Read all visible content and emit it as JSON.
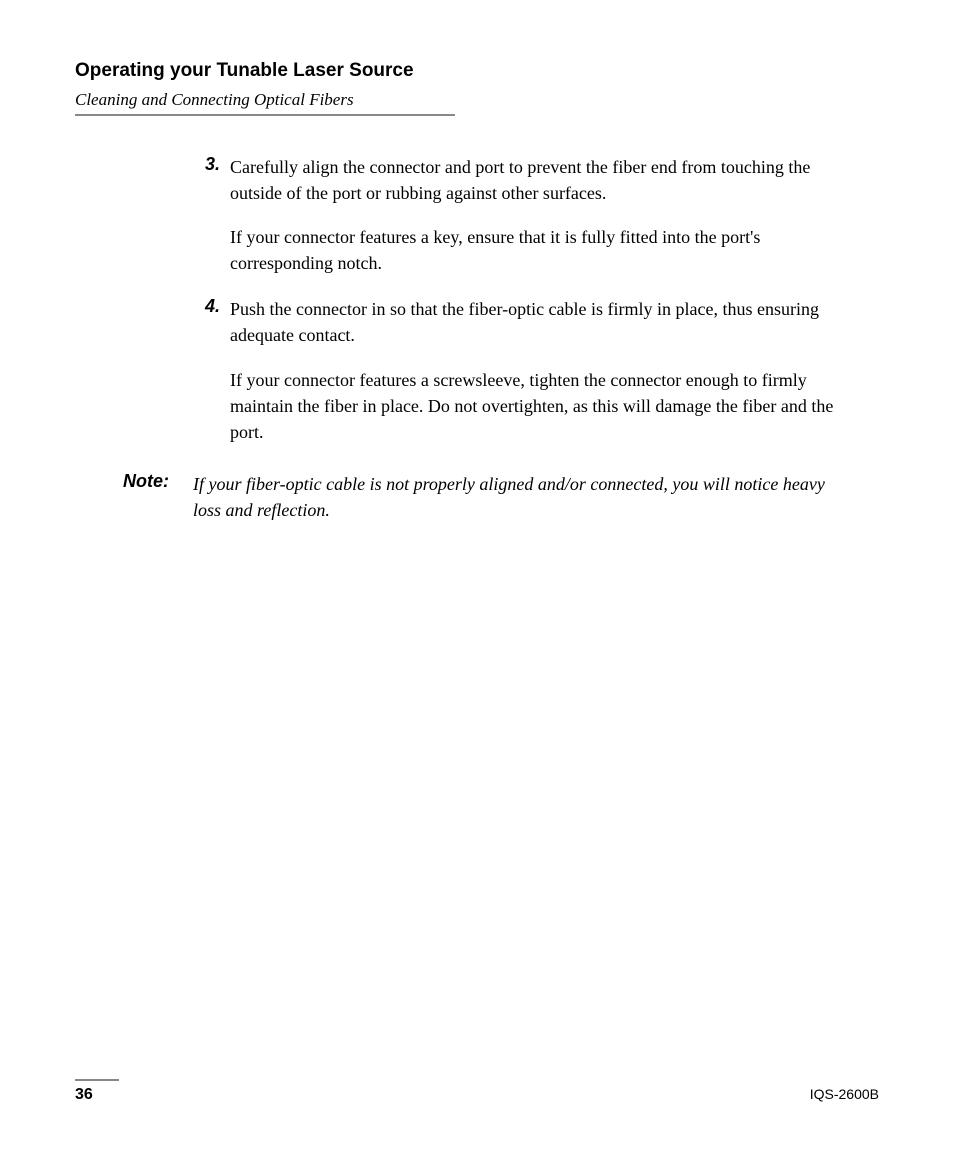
{
  "header": {
    "section_title": "Operating your Tunable Laser Source",
    "subtitle": "Cleaning and Connecting Optical Fibers"
  },
  "steps": [
    {
      "number": "3.",
      "paragraphs": [
        "Carefully align the connector and port to prevent the fiber end from touching the outside of the port or rubbing against other surfaces.",
        "If your connector features a key, ensure that it is fully fitted into the port's corresponding notch."
      ]
    },
    {
      "number": "4.",
      "paragraphs": [
        "Push the connector in so that the fiber-optic cable is firmly in place, thus ensuring adequate contact.",
        "If your connector features a screwsleeve, tighten the connector enough to firmly maintain the fiber in place. Do not overtighten, as this will damage the fiber and the port."
      ]
    }
  ],
  "note": {
    "label": "Note:",
    "text": "If your fiber-optic cable is not properly aligned and/or connected, you will notice heavy loss and reflection."
  },
  "footer": {
    "page_number": "36",
    "model": "IQS-2600B"
  }
}
